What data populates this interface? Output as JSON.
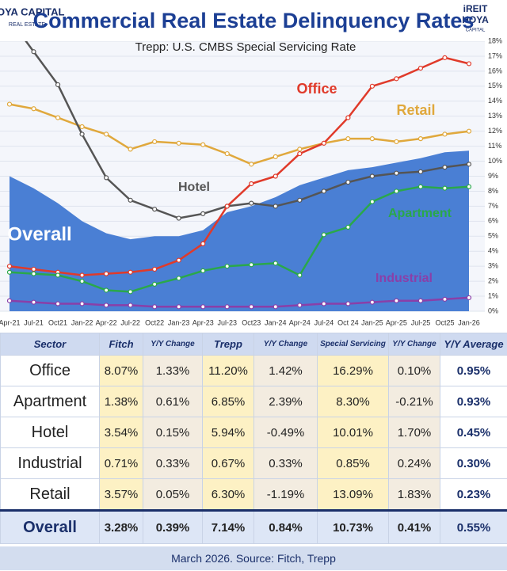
{
  "logo_left": {
    "title": "HOYA CAPITAL",
    "subtitle": "REAL ESTATE"
  },
  "logo_right": {
    "title": "iREIT",
    "subtitle": "HOYA",
    "tagline": "CAPITAL"
  },
  "chart_data": {
    "type": "line",
    "title": "Commercial Real Estate Delinquency Rates",
    "subtitle": "Trepp: U.S. CMBS Special Servicing Rate",
    "categories": [
      "Apr-21",
      "Jul-21",
      "Oct21",
      "Jan-22",
      "Apr-22",
      "Jul-22",
      "Oct22",
      "Jan-23",
      "Apr-23",
      "Jul-23",
      "Oct23",
      "Jan-24",
      "Apr-24",
      "Jul-24",
      "Oct 24",
      "Jan-25",
      "Apr-25",
      "Jul-25",
      "Oct25",
      "Jan-26"
    ],
    "series": [
      {
        "name": "Overall",
        "color": "#4a7fd4",
        "area": true,
        "values": [
          9.0,
          8.2,
          7.2,
          6.0,
          5.2,
          4.8,
          5.0,
          5.0,
          5.4,
          6.6,
          7.0,
          7.6,
          8.4,
          8.9,
          9.4,
          9.6,
          9.9,
          10.2,
          10.6,
          10.7
        ]
      },
      {
        "name": "Retail",
        "color": "#e0a83c",
        "values": [
          13.8,
          13.5,
          12.9,
          12.3,
          11.8,
          10.8,
          11.3,
          11.2,
          11.1,
          10.5,
          9.8,
          10.3,
          10.8,
          11.2,
          11.5,
          11.5,
          11.3,
          11.5,
          11.8,
          12.0
        ]
      },
      {
        "name": "Hotel",
        "color": "#555555",
        "values": [
          19.5,
          17.3,
          15.1,
          11.8,
          8.9,
          7.4,
          6.8,
          6.2,
          6.5,
          7.0,
          7.2,
          7.0,
          7.4,
          8.0,
          8.6,
          9.0,
          9.2,
          9.3,
          9.6,
          9.8
        ]
      },
      {
        "name": "Office",
        "color": "#e03a2a",
        "values": [
          3.0,
          2.8,
          2.6,
          2.4,
          2.5,
          2.6,
          2.8,
          3.4,
          4.5,
          7.0,
          8.5,
          9.0,
          10.5,
          11.2,
          12.9,
          15.0,
          15.5,
          16.2,
          16.9,
          16.5
        ]
      },
      {
        "name": "Apartment",
        "color": "#2aa84a",
        "values": [
          2.6,
          2.5,
          2.4,
          2.0,
          1.4,
          1.3,
          1.8,
          2.2,
          2.7,
          3.0,
          3.1,
          3.2,
          2.4,
          5.1,
          5.6,
          7.3,
          8.0,
          8.3,
          8.2,
          8.3
        ]
      },
      {
        "name": "Industrial",
        "color": "#8a3fa8",
        "values": [
          0.7,
          0.6,
          0.5,
          0.5,
          0.4,
          0.4,
          0.3,
          0.3,
          0.3,
          0.3,
          0.3,
          0.3,
          0.4,
          0.5,
          0.5,
          0.6,
          0.7,
          0.7,
          0.8,
          0.9
        ]
      }
    ],
    "ylim": [
      0,
      18
    ],
    "yticks": [
      {
        "value": 0,
        "label": "0%"
      },
      {
        "value": 1,
        "label": "1%"
      },
      {
        "value": 2,
        "label": "2%"
      },
      {
        "value": 3,
        "label": "3%"
      },
      {
        "value": 4,
        "label": "4%"
      },
      {
        "value": 5,
        "label": "5%"
      },
      {
        "value": 6,
        "label": "6%"
      },
      {
        "value": 7,
        "label": "7%"
      },
      {
        "value": 8,
        "label": "8%"
      },
      {
        "value": 9,
        "label": "9%"
      },
      {
        "value": 10,
        "label": "10%"
      },
      {
        "value": 11,
        "label": "11%"
      },
      {
        "value": 12,
        "label": "12%"
      },
      {
        "value": 13,
        "label": "13%"
      },
      {
        "value": 14,
        "label": "14%"
      },
      {
        "value": 15,
        "label": "15%"
      },
      {
        "value": 16,
        "label": "16%"
      },
      {
        "value": 17,
        "label": "17%"
      },
      {
        "value": 18,
        "label": "18%"
      }
    ]
  },
  "table": {
    "header": [
      "Sector",
      "Fitch",
      "Y/Y Change",
      "Trepp",
      "Y/Y Change",
      "Special Servicing",
      "Y/Y Change",
      "Y/Y Average"
    ],
    "rows": [
      [
        "Office",
        "8.07%",
        "1.33%",
        "11.20%",
        "1.42%",
        "16.29%",
        "0.10%",
        "0.95%"
      ],
      [
        "Apartment",
        "1.38%",
        "0.61%",
        "6.85%",
        "2.39%",
        "8.30%",
        "-0.21%",
        "0.93%"
      ],
      [
        "Hotel",
        "3.54%",
        "0.15%",
        "5.94%",
        "-0.49%",
        "10.01%",
        "1.70%",
        "0.45%"
      ],
      [
        "Industrial",
        "0.71%",
        "0.33%",
        "0.67%",
        "0.33%",
        "0.85%",
        "0.24%",
        "0.30%"
      ],
      [
        "Retail",
        "3.57%",
        "0.05%",
        "6.30%",
        "-1.19%",
        "13.09%",
        "1.83%",
        "0.23%"
      ],
      [
        "Overall",
        "3.28%",
        "0.39%",
        "7.14%",
        "0.84%",
        "10.73%",
        "0.41%",
        "0.55%"
      ]
    ],
    "footer": "March 2026. Source: Fitch, Trepp"
  }
}
